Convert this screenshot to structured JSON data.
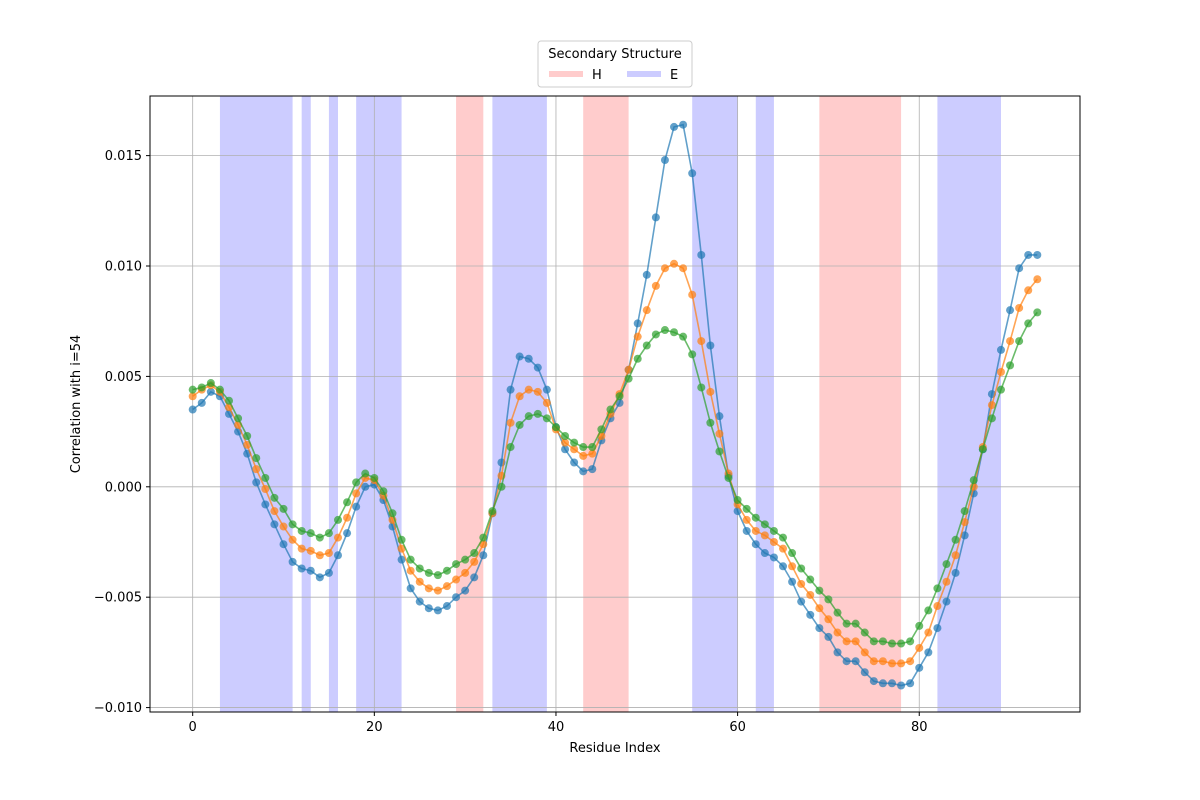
{
  "chart_data": {
    "type": "line",
    "title": "",
    "xlabel": "Residue Index",
    "ylabel": "Correlation with i=54",
    "xlim": [
      -4.7,
      97.7
    ],
    "ylim": [
      -0.0102,
      0.0177
    ],
    "xticks": [
      0,
      20,
      40,
      60,
      80
    ],
    "yticks": [
      -0.01,
      -0.005,
      0.0,
      0.005,
      0.01,
      0.015
    ],
    "ytick_labels": [
      "−0.010",
      "−0.005",
      "0.000",
      "0.005",
      "0.010",
      "0.015"
    ],
    "grid": true,
    "legend": {
      "title": "Secondary Structure",
      "placement": "top-center-outside",
      "entries": [
        {
          "label": "H",
          "color": "#ffcccc"
        },
        {
          "label": "E",
          "color": "#ccccff"
        }
      ]
    },
    "regions": [
      {
        "type": "E",
        "start": 3,
        "end": 11
      },
      {
        "type": "E",
        "start": 12,
        "end": 13
      },
      {
        "type": "E",
        "start": 15,
        "end": 16
      },
      {
        "type": "E",
        "start": 18,
        "end": 23
      },
      {
        "type": "H",
        "start": 29,
        "end": 32
      },
      {
        "type": "E",
        "start": 33,
        "end": 39
      },
      {
        "type": "H",
        "start": 43,
        "end": 48
      },
      {
        "type": "E",
        "start": 55,
        "end": 60
      },
      {
        "type": "E",
        "start": 62,
        "end": 64
      },
      {
        "type": "H",
        "start": 69,
        "end": 78
      },
      {
        "type": "E",
        "start": 82,
        "end": 89
      }
    ],
    "region_colors": {
      "H": "#ffcccc",
      "E": "#ccccff"
    },
    "series": [
      {
        "color": "#1f77b4",
        "values": [
          0.0035,
          0.0038,
          0.0043,
          0.0041,
          0.0033,
          0.0025,
          0.0015,
          0.0002,
          -0.0008,
          -0.0017,
          -0.0026,
          -0.0034,
          -0.0037,
          -0.0038,
          -0.0041,
          -0.0039,
          -0.0031,
          -0.0021,
          -0.0009,
          0.0,
          0.0001,
          -0.0006,
          -0.0018,
          -0.0033,
          -0.0046,
          -0.0052,
          -0.0055,
          -0.0056,
          -0.0054,
          -0.005,
          -0.0047,
          -0.0041,
          -0.0031,
          -0.0012,
          0.0011,
          0.0044,
          0.0059,
          0.0058,
          0.0054,
          0.0044,
          0.0027,
          0.0017,
          0.0011,
          0.0007,
          0.0008,
          0.0021,
          0.0031,
          0.0038,
          0.0053,
          0.0074,
          0.0096,
          0.0122,
          0.0148,
          0.0163,
          0.0164,
          0.0142,
          0.0105,
          0.0064,
          0.0032,
          0.0005,
          -0.0011,
          -0.002,
          -0.0026,
          -0.003,
          -0.0032,
          -0.0036,
          -0.0043,
          -0.0052,
          -0.0058,
          -0.0064,
          -0.0068,
          -0.0075,
          -0.0079,
          -0.0079,
          -0.0084,
          -0.0088,
          -0.0089,
          -0.0089,
          -0.009,
          -0.0089,
          -0.0082,
          -0.0075,
          -0.0064,
          -0.0052,
          -0.0039,
          -0.0022,
          -0.0003,
          0.0017,
          0.0042,
          0.0062,
          0.008,
          0.0099,
          0.0105,
          0.0105
        ]
      },
      {
        "color": "#ff7f0e",
        "values": [
          0.0041,
          0.0044,
          0.0046,
          0.0043,
          0.0036,
          0.0028,
          0.0019,
          0.0008,
          -0.0001,
          -0.0011,
          -0.0018,
          -0.0024,
          -0.0028,
          -0.0029,
          -0.0031,
          -0.003,
          -0.0023,
          -0.0014,
          -0.0003,
          0.0004,
          0.0003,
          -0.0004,
          -0.0015,
          -0.0028,
          -0.0038,
          -0.0043,
          -0.0046,
          -0.0047,
          -0.0045,
          -0.0042,
          -0.0039,
          -0.0034,
          -0.0026,
          -0.0012,
          0.0005,
          0.0029,
          0.0041,
          0.0044,
          0.0043,
          0.0038,
          0.0026,
          0.002,
          0.0017,
          0.0014,
          0.0015,
          0.0023,
          0.0033,
          0.0042,
          0.0053,
          0.0068,
          0.008,
          0.0091,
          0.0099,
          0.0101,
          0.0099,
          0.0087,
          0.0066,
          0.0043,
          0.0024,
          0.0006,
          -0.0008,
          -0.0015,
          -0.002,
          -0.0022,
          -0.0025,
          -0.0028,
          -0.0036,
          -0.0044,
          -0.0049,
          -0.0055,
          -0.006,
          -0.0066,
          -0.007,
          -0.007,
          -0.0075,
          -0.0079,
          -0.0079,
          -0.008,
          -0.008,
          -0.0079,
          -0.0073,
          -0.0066,
          -0.0054,
          -0.0043,
          -0.0031,
          -0.0016,
          0.0,
          0.0018,
          0.0037,
          0.0052,
          0.0066,
          0.0081,
          0.0089,
          0.0094
        ]
      },
      {
        "color": "#2ca02c",
        "values": [
          0.0044,
          0.0045,
          0.0047,
          0.0044,
          0.0039,
          0.0031,
          0.0023,
          0.0013,
          0.0004,
          -0.0005,
          -0.001,
          -0.0017,
          -0.002,
          -0.0021,
          -0.0023,
          -0.0021,
          -0.0015,
          -0.0007,
          0.0002,
          0.0006,
          0.0004,
          -0.0002,
          -0.0012,
          -0.0024,
          -0.0033,
          -0.0037,
          -0.0039,
          -0.004,
          -0.0038,
          -0.0035,
          -0.0033,
          -0.003,
          -0.0023,
          -0.0011,
          0.0,
          0.0018,
          0.0028,
          0.0032,
          0.0033,
          0.0031,
          0.0027,
          0.0023,
          0.002,
          0.0018,
          0.0018,
          0.0026,
          0.0035,
          0.0041,
          0.0049,
          0.0058,
          0.0064,
          0.0069,
          0.0071,
          0.007,
          0.0068,
          0.006,
          0.0045,
          0.0029,
          0.0016,
          0.0004,
          -0.0006,
          -0.001,
          -0.0014,
          -0.0017,
          -0.002,
          -0.0023,
          -0.003,
          -0.0037,
          -0.0042,
          -0.0047,
          -0.0051,
          -0.0057,
          -0.0062,
          -0.0062,
          -0.0066,
          -0.007,
          -0.007,
          -0.0071,
          -0.0071,
          -0.007,
          -0.0063,
          -0.0056,
          -0.0046,
          -0.0035,
          -0.0024,
          -0.0011,
          0.0003,
          0.0017,
          0.0031,
          0.0044,
          0.0055,
          0.0066,
          0.0074,
          0.0079
        ]
      }
    ]
  }
}
